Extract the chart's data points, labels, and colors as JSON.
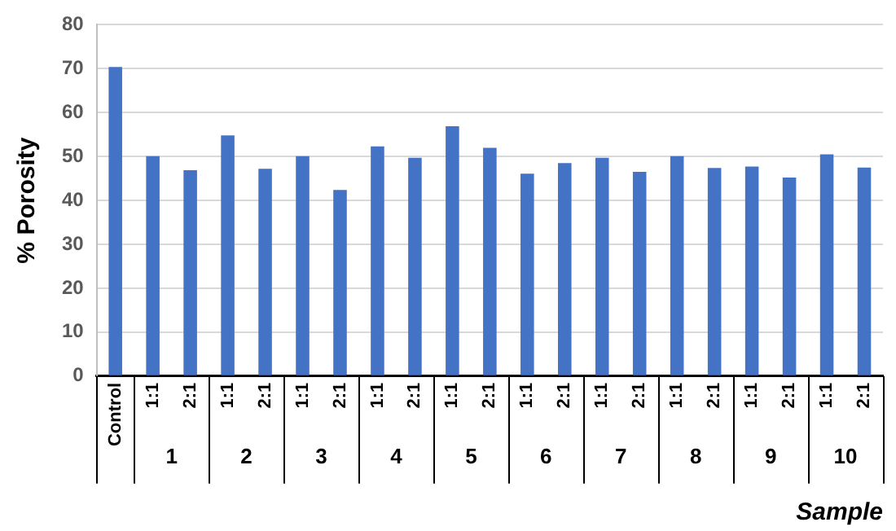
{
  "chart_data": {
    "type": "bar",
    "ylabel": "% Porosity",
    "xlabel": "Sample",
    "categories": [
      "Control",
      "1:1",
      "2:1",
      "1:1",
      "2:1",
      "1:1",
      "2:1",
      "1:1",
      "2:1",
      "1:1",
      "2:1",
      "1:1",
      "2:1",
      "1:1",
      "2:1",
      "1:1",
      "2:1",
      "1:1",
      "2:1",
      "1:1",
      "2:1"
    ],
    "values": [
      70.4,
      50.1,
      46.9,
      54.8,
      47.2,
      50.1,
      42.4,
      52.3,
      49.7,
      56.9,
      52.0,
      46.1,
      48.5,
      49.7,
      46.5,
      50.1,
      47.4,
      47.7,
      45.2,
      50.5,
      47.5
    ],
    "color": "#4472c4",
    "annotations": [
      "1",
      "2",
      "3",
      "4",
      "5",
      "6",
      "7",
      "8",
      "9",
      "10"
    ],
    "ylim": [
      0,
      80
    ],
    "yticks": [
      0,
      10,
      20,
      30,
      40,
      50,
      60,
      70,
      80
    ],
    "grid": "y",
    "legend": false
  }
}
